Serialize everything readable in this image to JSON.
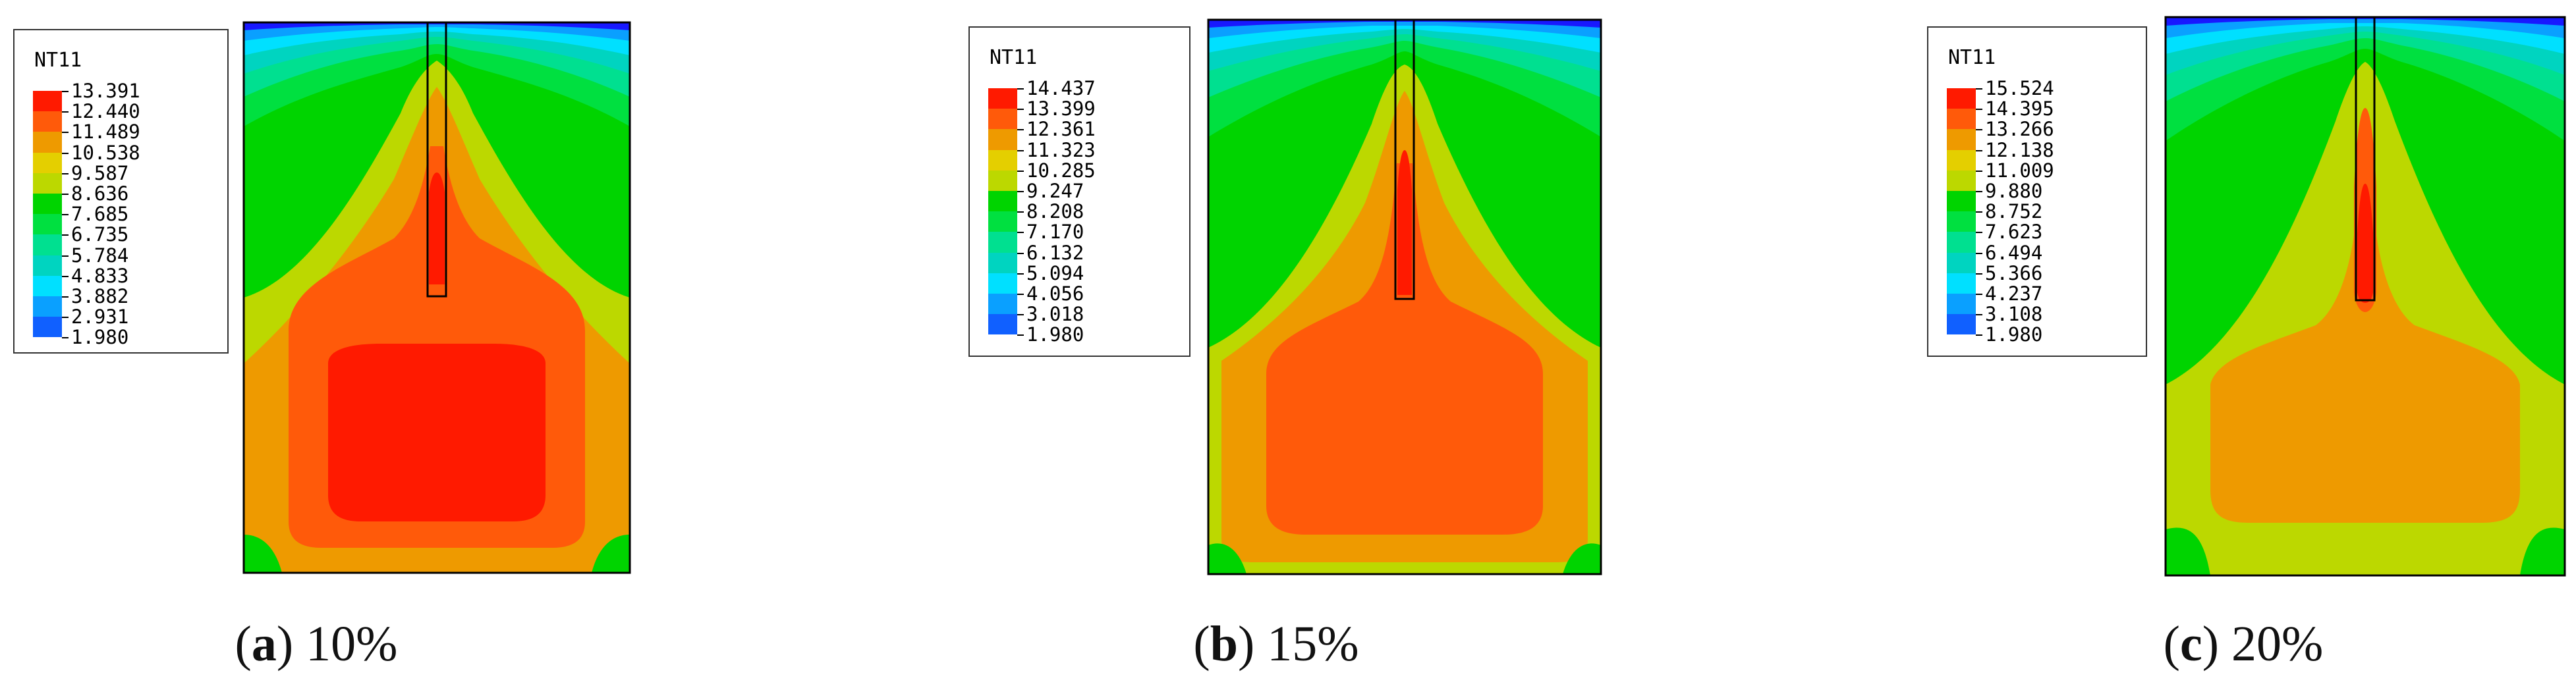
{
  "panels": [
    {
      "legend": {
        "title": "NT11",
        "values": [
          "13.391",
          "12.440",
          "11.489",
          "10.538",
          "9.587",
          "8.636",
          "7.685",
          "6.735",
          "5.784",
          "4.833",
          "3.882",
          "2.931",
          "1.980"
        ]
      },
      "caption": {
        "letter": "a",
        "text": "10%"
      }
    },
    {
      "legend": {
        "title": "NT11",
        "values": [
          "14.437",
          "13.399",
          "12.361",
          "11.323",
          "10.285",
          "9.247",
          "8.208",
          "7.170",
          "6.132",
          "5.094",
          "4.056",
          "3.018",
          "1.980"
        ]
      },
      "caption": {
        "letter": "b",
        "text": "15%"
      }
    },
    {
      "legend": {
        "title": "NT11",
        "values": [
          "15.524",
          "14.395",
          "13.266",
          "12.138",
          "11.009",
          "9.880",
          "8.752",
          "7.623",
          "6.494",
          "5.366",
          "4.237",
          "3.108",
          "1.980"
        ]
      },
      "caption": {
        "letter": "c",
        "text": "20%"
      }
    }
  ],
  "colors": {
    "contour_bands": [
      "#ff1a00",
      "#ff5a0a",
      "#ee9a00",
      "#e4cf00",
      "#bcd800",
      "#00d400",
      "#00e040",
      "#00e090",
      "#00d4c0",
      "#00e0ff",
      "#0aa0ff",
      "#1060ff",
      "#1818ff"
    ]
  }
}
